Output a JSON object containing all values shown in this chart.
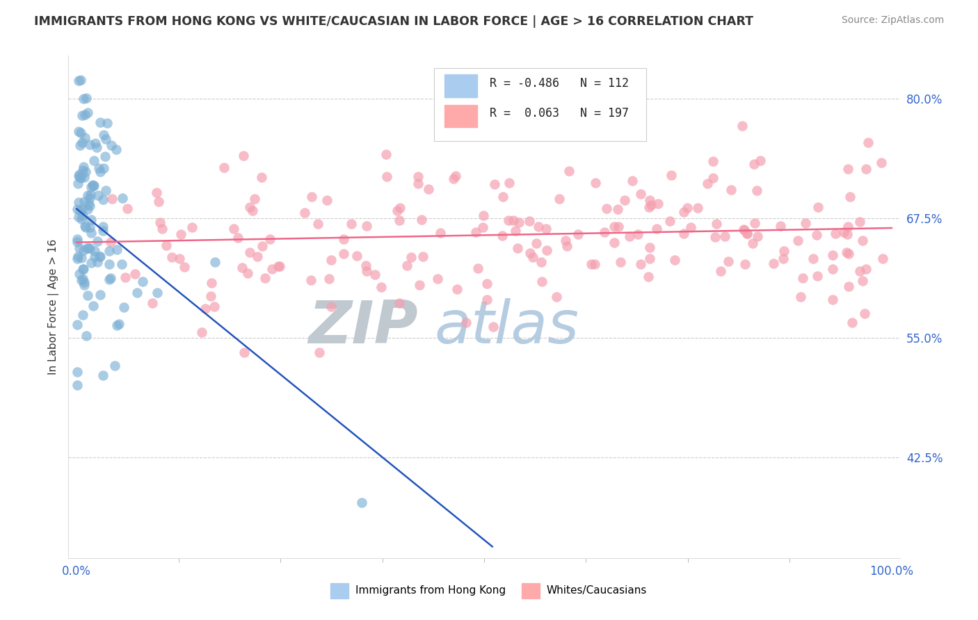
{
  "title": "IMMIGRANTS FROM HONG KONG VS WHITE/CAUCASIAN IN LABOR FORCE | AGE > 16 CORRELATION CHART",
  "source": "Source: ZipAtlas.com",
  "ylabel": "In Labor Force | Age > 16",
  "xlim": [
    -0.01,
    1.01
  ],
  "ylim": [
    0.32,
    0.845
  ],
  "yticks": [
    0.425,
    0.55,
    0.675,
    0.8
  ],
  "ytick_labels": [
    "42.5%",
    "55.0%",
    "67.5%",
    "80.0%"
  ],
  "xticks": [
    0.0,
    1.0
  ],
  "xtick_labels": [
    "0.0%",
    "100.0%"
  ],
  "legend_blue_label": "R = -0.486   N = 112",
  "legend_pink_label": "R =  0.063   N = 197",
  "blue_scatter_color": "#7BAFD4",
  "pink_scatter_color": "#F4A0B0",
  "blue_line_color": "#2255BB",
  "pink_line_color": "#EE6688",
  "grid_color": "#CCCCCC",
  "watermark_zip_color": "#C0C8D0",
  "watermark_atlas_color": "#A8C4DC",
  "background_color": "#FFFFFF",
  "legend_edge_color": "#CCCCCC",
  "legend_blue_box_color": "#AACCEE",
  "legend_pink_box_color": "#FFAAAA",
  "bottom_legend_blue_color": "#AACCEE",
  "bottom_legend_pink_color": "#FFAAAA",
  "bottom_legend_text_color": "#000000",
  "tick_label_color": "#3366CC",
  "title_color": "#333333",
  "source_color": "#888888",
  "ylabel_color": "#333333",
  "blue_scatter_seed": 777,
  "pink_scatter_seed": 999,
  "n_blue": 112,
  "n_pink": 197,
  "blue_line_x0": 0.0,
  "blue_line_x1": 0.51,
  "blue_line_y0": 0.685,
  "blue_line_y1": 0.332,
  "pink_line_x0": 0.0,
  "pink_line_x1": 1.0,
  "pink_line_y0": 0.65,
  "pink_line_y1": 0.665
}
